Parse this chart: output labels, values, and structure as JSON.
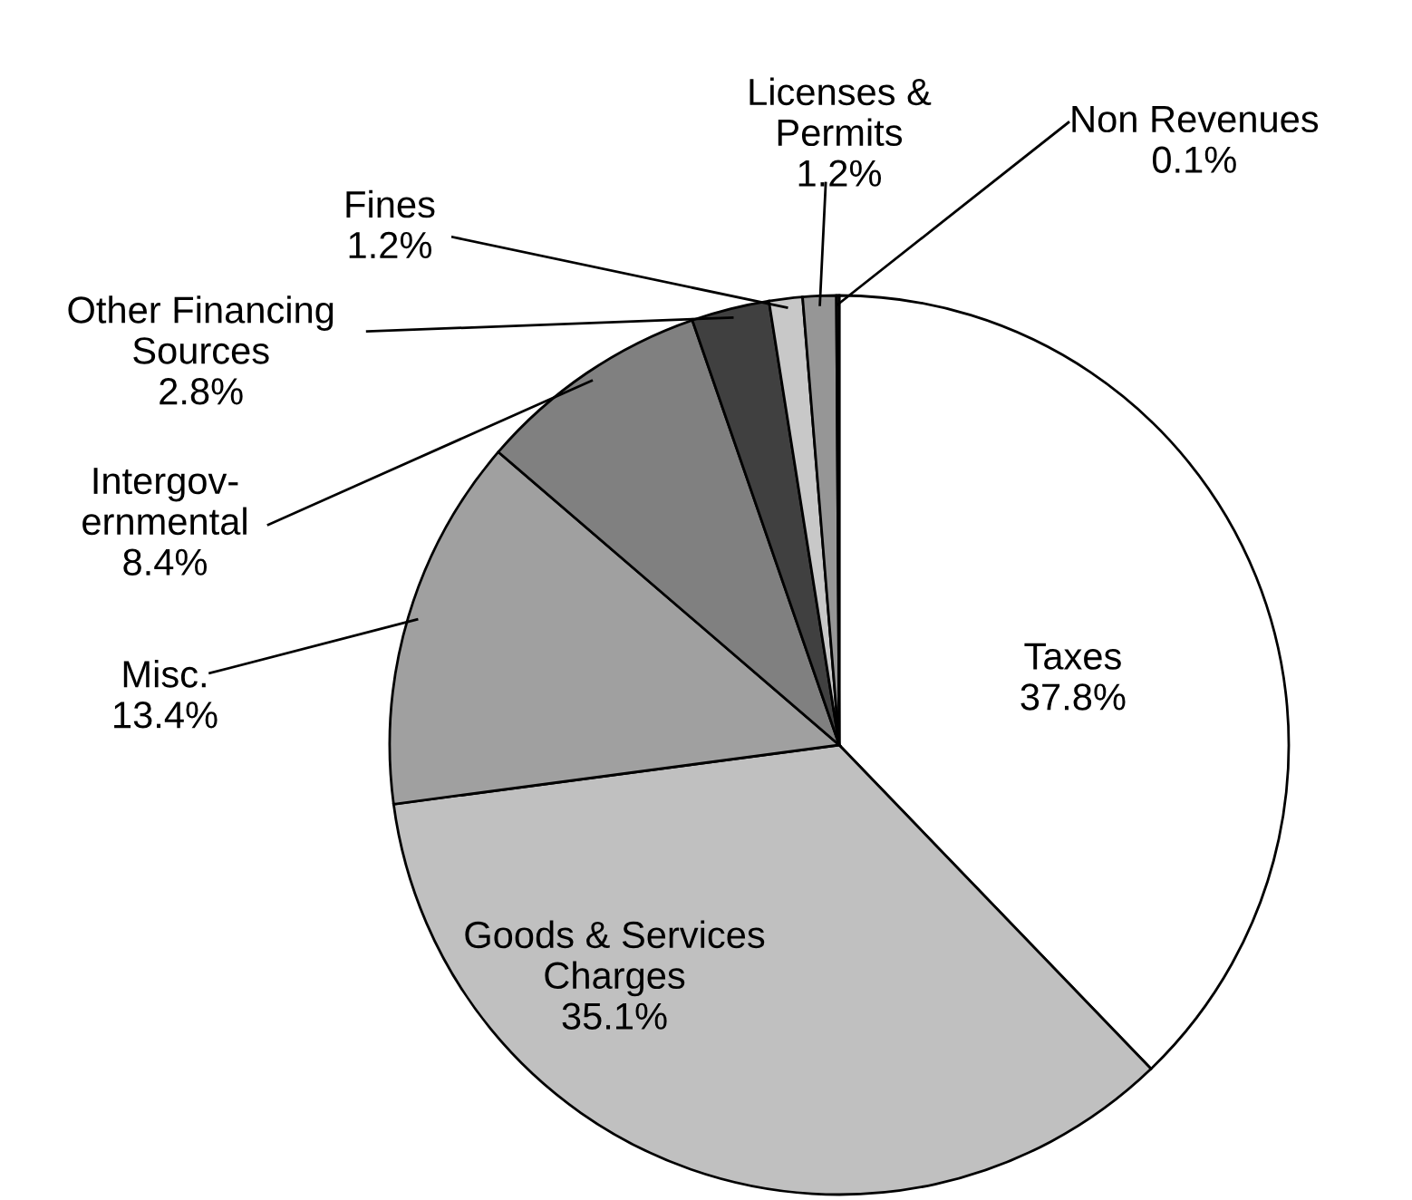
{
  "chart_data": {
    "type": "pie",
    "categories": [
      "Taxes",
      "Goods & Services\nCharges",
      "Misc.",
      "Intergov-\nernmental",
      "Other Financing\nSources",
      "Fines",
      "Licenses &\nPermits",
      "Non Revenues"
    ],
    "values": [
      37.8,
      35.1,
      13.4,
      8.4,
      2.8,
      1.2,
      1.2,
      0.1
    ],
    "colors": [
      "#ffffff",
      "#c0c0c0",
      "#a0a0a0",
      "#808080",
      "#404040",
      "#c8c8c8",
      "#969696",
      "#303030"
    ],
    "value_labels": [
      "37.8%",
      "35.1%",
      "13.4%",
      "8.4%",
      "2.8%",
      "1.2%",
      "1.2%",
      "0.1%"
    ],
    "legend": false
  }
}
